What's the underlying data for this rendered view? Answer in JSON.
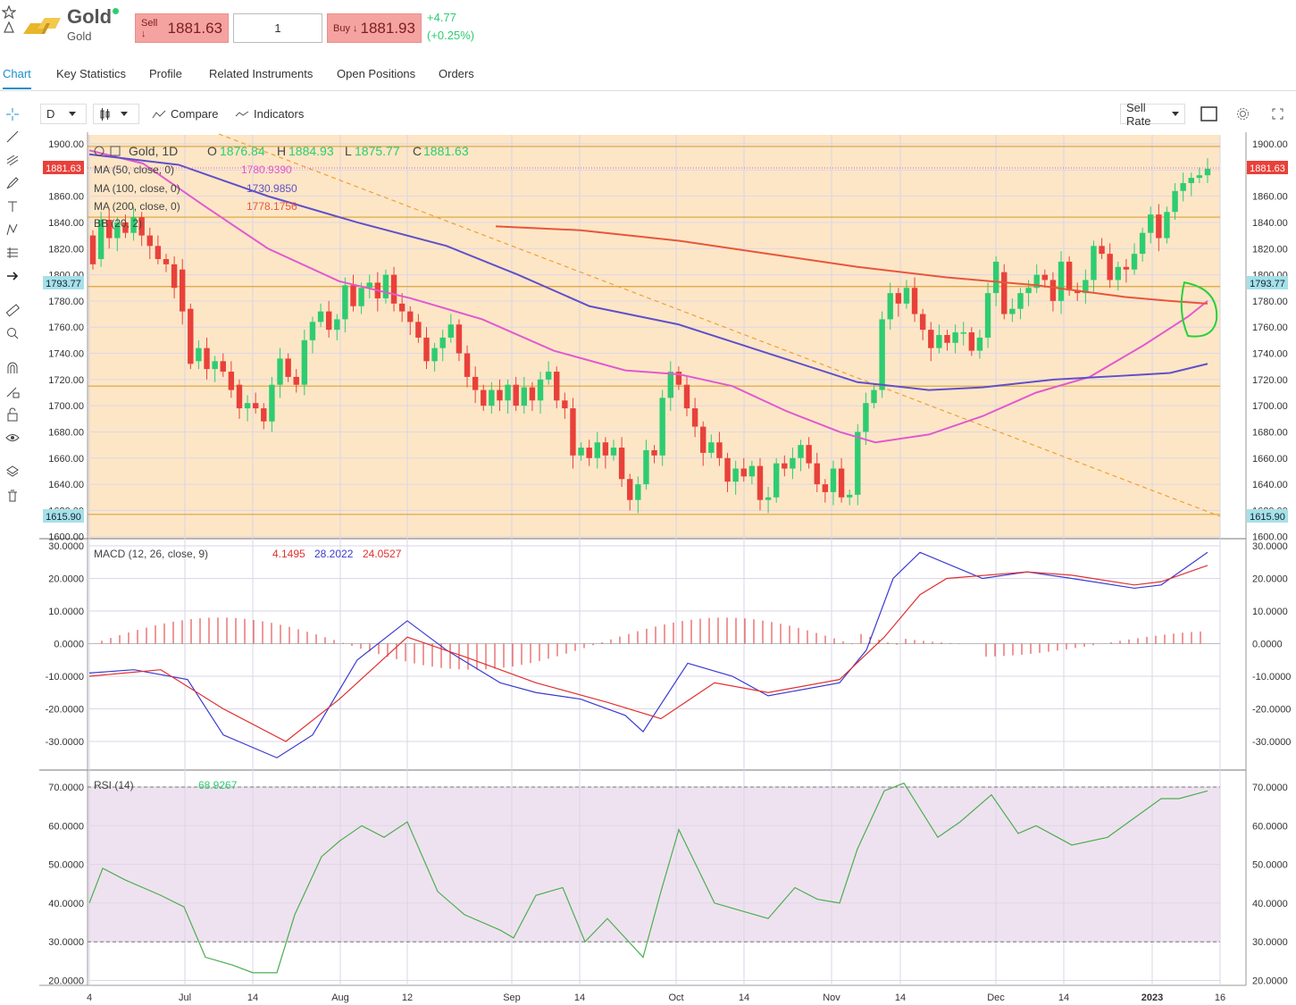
{
  "header": {
    "instrument": "Gold",
    "subtitle": "Gold",
    "sell_label": "Sell ↓",
    "sell_price": "1881.63",
    "amount": "1",
    "buy_label": "Buy ↓",
    "buy_price": "1881.93",
    "change": "+4.77",
    "change_pct": "(+0.25%)",
    "up_color": "#2ecc71",
    "sell_color": "#f5a3a0"
  },
  "tabs": [
    "Chart",
    "Key Statistics",
    "Profile",
    "Related Instruments",
    "Open Positions",
    "Orders"
  ],
  "toolbar": {
    "interval": "D",
    "compare": "Compare",
    "indicators": "Indicators",
    "rate": "Sell Rate"
  },
  "left_tools": [
    "crosshair-icon",
    "trendline-icon",
    "fib-icon",
    "brush-icon",
    "text-icon",
    "pattern-icon",
    "forecast-icon",
    "arrow-icon",
    "ruler-icon",
    "zoom-icon",
    "magnet-icon",
    "lock-draw-icon",
    "lock-icon",
    "eye-icon",
    "layers-icon",
    "trash-icon"
  ],
  "chart_data": [
    {
      "type": "candlestick",
      "legend": {
        "title": "Gold, 1D",
        "O": "1876.84",
        "H": "1884.93",
        "L": "1875.77",
        "C": "1881.63",
        "ma50": {
          "label": "MA (50, close, 0)",
          "value": "1780.9390",
          "color": "#e05ad0"
        },
        "ma100": {
          "label": "MA (100, close, 0)",
          "value": "1730.9850",
          "color": "#6050c8"
        },
        "ma200": {
          "label": "MA (200, close, 0)",
          "value": "1778.1756",
          "color": "#e8563a"
        },
        "bb": {
          "label": "BB (20, 2)"
        }
      },
      "y_ticks": [
        "1900.00",
        "1880.00",
        "1860.00",
        "1840.00",
        "1820.00",
        "1800.00",
        "1780.00",
        "1760.00",
        "1740.00",
        "1720.00",
        "1700.00",
        "1680.00",
        "1660.00",
        "1640.00",
        "1620.00",
        "1600.00"
      ],
      "ylim": [
        1600,
        1904
      ],
      "price_tags": {
        "current": "1881.63",
        "mid": "1793.77",
        "low": "1615.90"
      },
      "horizontal_lines": [
        1898,
        1844,
        1791,
        1715,
        1617
      ],
      "candles": [
        [
          1830,
          1830,
          1808
        ],
        [
          1812,
          1812,
          1842
        ],
        [
          1842,
          1842,
          1828
        ],
        [
          1828,
          1828,
          1840
        ],
        [
          1840,
          1840,
          1832
        ],
        [
          1832,
          1832,
          1844
        ],
        [
          1844,
          1844,
          1830
        ],
        [
          1830,
          1830,
          1822
        ],
        [
          1822,
          1822,
          1812
        ],
        [
          1812,
          1812,
          1808
        ],
        [
          1808,
          1808,
          1790
        ],
        [
          1804,
          1804,
          1772
        ],
        [
          1774,
          1774,
          1732
        ],
        [
          1734,
          1734,
          1744
        ],
        [
          1744,
          1744,
          1728
        ],
        [
          1728,
          1728,
          1734
        ],
        [
          1734,
          1734,
          1726
        ],
        [
          1726,
          1726,
          1712
        ],
        [
          1716,
          1716,
          1698
        ],
        [
          1698,
          1698,
          1702
        ],
        [
          1702,
          1702,
          1698
        ],
        [
          1698,
          1698,
          1688
        ],
        [
          1688,
          1688,
          1716
        ],
        [
          1716,
          1716,
          1736
        ],
        [
          1736,
          1736,
          1722
        ],
        [
          1722,
          1722,
          1716
        ],
        [
          1716,
          1716,
          1750
        ],
        [
          1750,
          1750,
          1764
        ],
        [
          1764,
          1764,
          1772
        ],
        [
          1772,
          1772,
          1758
        ],
        [
          1758,
          1758,
          1766
        ],
        [
          1766,
          1766,
          1792
        ],
        [
          1792,
          1792,
          1776
        ],
        [
          1776,
          1776,
          1790
        ],
        [
          1790,
          1790,
          1794
        ],
        [
          1794,
          1794,
          1782
        ],
        [
          1782,
          1782,
          1800
        ],
        [
          1800,
          1800,
          1778
        ],
        [
          1778,
          1778,
          1772
        ],
        [
          1772,
          1772,
          1764
        ],
        [
          1764,
          1764,
          1752
        ],
        [
          1752,
          1752,
          1734
        ],
        [
          1734,
          1734,
          1744
        ],
        [
          1744,
          1744,
          1752
        ],
        [
          1752,
          1752,
          1762
        ],
        [
          1762,
          1762,
          1740
        ],
        [
          1740,
          1740,
          1722
        ],
        [
          1722,
          1722,
          1712
        ],
        [
          1712,
          1712,
          1700
        ],
        [
          1700,
          1700,
          1712
        ],
        [
          1712,
          1712,
          1704
        ],
        [
          1704,
          1704,
          1716
        ],
        [
          1716,
          1716,
          1700
        ],
        [
          1700,
          1700,
          1714
        ],
        [
          1714,
          1714,
          1704
        ],
        [
          1704,
          1704,
          1720
        ],
        [
          1720,
          1720,
          1726
        ],
        [
          1726,
          1726,
          1704
        ],
        [
          1704,
          1704,
          1698
        ],
        [
          1698,
          1698,
          1662
        ],
        [
          1662,
          1662,
          1668
        ],
        [
          1668,
          1668,
          1660
        ],
        [
          1660,
          1660,
          1672
        ],
        [
          1672,
          1672,
          1662
        ],
        [
          1662,
          1662,
          1668
        ],
        [
          1668,
          1668,
          1644
        ],
        [
          1644,
          1644,
          1628
        ],
        [
          1628,
          1628,
          1640
        ],
        [
          1640,
          1640,
          1666
        ],
        [
          1666,
          1666,
          1662
        ],
        [
          1662,
          1662,
          1706
        ],
        [
          1706,
          1706,
          1726
        ],
        [
          1726,
          1726,
          1716
        ],
        [
          1716,
          1716,
          1698
        ],
        [
          1698,
          1698,
          1684
        ],
        [
          1684,
          1684,
          1664
        ],
        [
          1664,
          1664,
          1672
        ],
        [
          1672,
          1672,
          1660
        ],
        [
          1660,
          1660,
          1642
        ],
        [
          1642,
          1642,
          1652
        ],
        [
          1652,
          1652,
          1646
        ],
        [
          1646,
          1646,
          1654
        ],
        [
          1654,
          1654,
          1628
        ],
        [
          1628,
          1628,
          1630
        ],
        [
          1630,
          1630,
          1656
        ],
        [
          1656,
          1656,
          1652
        ],
        [
          1652,
          1652,
          1660
        ],
        [
          1660,
          1660,
          1670
        ],
        [
          1670,
          1670,
          1656
        ],
        [
          1656,
          1656,
          1640
        ],
        [
          1640,
          1640,
          1634
        ],
        [
          1634,
          1634,
          1652
        ],
        [
          1652,
          1652,
          1630
        ],
        [
          1630,
          1630,
          1632
        ],
        [
          1632,
          1632,
          1680
        ],
        [
          1680,
          1680,
          1702
        ],
        [
          1702,
          1702,
          1712
        ],
        [
          1712,
          1712,
          1766
        ],
        [
          1766,
          1766,
          1786
        ],
        [
          1786,
          1786,
          1778
        ],
        [
          1778,
          1778,
          1790
        ],
        [
          1790,
          1790,
          1770
        ],
        [
          1770,
          1770,
          1758
        ],
        [
          1758,
          1758,
          1744
        ],
        [
          1744,
          1744,
          1754
        ],
        [
          1754,
          1754,
          1748
        ],
        [
          1748,
          1748,
          1756
        ],
        [
          1756,
          1756,
          1756
        ],
        [
          1756,
          1756,
          1742
        ],
        [
          1742,
          1742,
          1752
        ],
        [
          1752,
          1752,
          1786
        ],
        [
          1786,
          1786,
          1810
        ],
        [
          1802,
          1802,
          1770
        ],
        [
          1770,
          1770,
          1774
        ],
        [
          1774,
          1774,
          1786
        ],
        [
          1786,
          1786,
          1790
        ],
        [
          1790,
          1790,
          1800
        ],
        [
          1800,
          1800,
          1796
        ],
        [
          1796,
          1796,
          1780
        ],
        [
          1780,
          1780,
          1810
        ],
        [
          1810,
          1810,
          1788
        ],
        [
          1788,
          1788,
          1786
        ],
        [
          1786,
          1786,
          1796
        ],
        [
          1796,
          1796,
          1822
        ],
        [
          1822,
          1822,
          1816
        ],
        [
          1816,
          1816,
          1796
        ],
        [
          1796,
          1796,
          1806
        ],
        [
          1806,
          1806,
          1804
        ],
        [
          1804,
          1804,
          1816
        ],
        [
          1816,
          1816,
          1832
        ],
        [
          1832,
          1832,
          1846
        ],
        [
          1846,
          1846,
          1828
        ],
        [
          1828,
          1828,
          1848
        ],
        [
          1848,
          1848,
          1864
        ],
        [
          1864,
          1864,
          1870
        ],
        [
          1870,
          1870,
          1874
        ],
        [
          1874,
          1874,
          1876
        ],
        [
          1876,
          1876,
          1881
        ]
      ]
    },
    {
      "type": "line",
      "legend": {
        "label": "MACD (12, 26, close, 9)",
        "hist": "4.1495",
        "macd": "28.2022",
        "signal": "24.0527"
      },
      "y_ticks": [
        "30.0000",
        "20.0000",
        "10.0000",
        "0.0000",
        "-10.0000",
        "-20.0000",
        "-30.0000"
      ],
      "ylim": [
        -38,
        30
      ]
    },
    {
      "type": "line",
      "legend": {
        "label": "RSI (14)",
        "value": "68.9267"
      },
      "y_ticks": [
        "70.0000",
        "60.0000",
        "50.0000",
        "40.0000",
        "30.0000",
        "20.0000"
      ],
      "ylim": [
        19,
        71
      ]
    }
  ],
  "x_labels": [
    "4",
    "Jul",
    "14",
    "Aug",
    "12",
    "Sep",
    "14",
    "Oct",
    "14",
    "Nov",
    "14",
    "Dec",
    "14",
    "2023",
    "16"
  ]
}
